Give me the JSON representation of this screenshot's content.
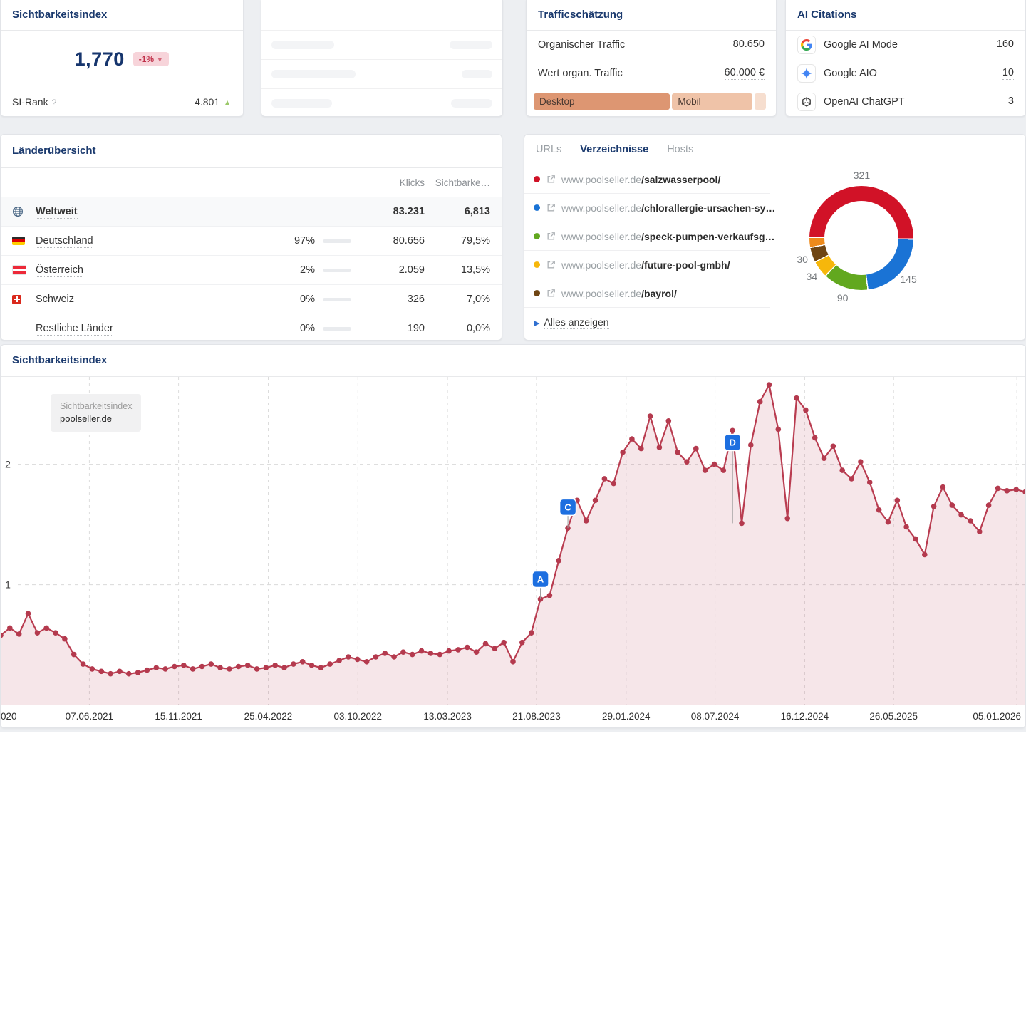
{
  "si_card": {
    "title": "Sichtbarkeitsindex",
    "value": "1,770",
    "change": "-1%",
    "change_dir": "▼",
    "rank_label": "SI-Rank",
    "rank_help": "?",
    "rank_value": "4.801",
    "rank_dir": "▲"
  },
  "skeleton_card": {
    "rows": [
      [
        88,
        60
      ],
      [
        118,
        43
      ],
      [
        85,
        58
      ]
    ]
  },
  "traffic_card": {
    "title": "Trafficschätzung",
    "rows": [
      {
        "label": "Organischer Traffic",
        "value": "80.650"
      },
      {
        "label": "Wert organ. Traffic",
        "value": "60.000 €"
      }
    ],
    "bar_segments": [
      {
        "label": "Desktop",
        "pct": 58,
        "color": "#dd9672"
      },
      {
        "label": "Mobil",
        "pct": 34,
        "color": "#efc3a8"
      },
      {
        "label": "",
        "pct": 5,
        "color": "#f6decf"
      }
    ]
  },
  "ai_card": {
    "title": "AI Citations",
    "rows": [
      {
        "icon": "google-g-icon",
        "label": "Google AI Mode",
        "value": "160"
      },
      {
        "icon": "google-aio-icon",
        "label": "Google AIO",
        "value": "10"
      },
      {
        "icon": "openai-icon",
        "label": "OpenAI ChatGPT",
        "value": "3"
      }
    ]
  },
  "countries_card": {
    "title": "Länderübersicht",
    "col_klicks": "Klicks",
    "col_si": "Sichtbarke…",
    "rows": [
      {
        "flag": "globe",
        "name": "Weltweit",
        "pct": "",
        "bar_pct": null,
        "klicks": "83.231",
        "si": "6,813",
        "bold": true
      },
      {
        "flag": "de",
        "name": "Deutschland",
        "pct": "97%",
        "bar_pct": 97,
        "klicks": "80.656",
        "si": "79,5%"
      },
      {
        "flag": "at",
        "name": "Österreich",
        "pct": "2%",
        "bar_pct": 2,
        "klicks": "2.059",
        "si": "13,5%"
      },
      {
        "flag": "ch",
        "name": "Schweiz",
        "pct": "0%",
        "bar_pct": 0,
        "klicks": "326",
        "si": "7,0%"
      },
      {
        "flag": "none",
        "name": "Restliche Länder",
        "pct": "0%",
        "bar_pct": 0,
        "klicks": "190",
        "si": "0,0%"
      }
    ]
  },
  "dirs_card": {
    "tabs": [
      "URLs",
      "Verzeichnisse",
      "Hosts"
    ],
    "active_tab": "Verzeichnisse",
    "links": [
      {
        "dot": "#cf1126",
        "host": "www.poolseller.de",
        "path": "/salzwasserpool/"
      },
      {
        "dot": "#1a73d5",
        "host": "www.poolseller.de",
        "path": "/chlorallergie-ursachen-sy…"
      },
      {
        "dot": "#62a81f",
        "host": "www.poolseller.de",
        "path": "/speck-pumpen-verkaufsg…"
      },
      {
        "dot": "#f6b70b",
        "host": "www.poolseller.de",
        "path": "/future-pool-gmbh/"
      },
      {
        "dot": "#6f4513",
        "host": "www.poolseller.de",
        "path": "/bayrol/"
      }
    ],
    "show_all": "Alles anzeigen"
  },
  "chart_card": {
    "title": "Sichtbarkeitsindex",
    "legend_label": "Sichtbarkeitsindex",
    "legend_domain": "poolseller.de"
  },
  "chart_data": [
    {
      "type": "pie",
      "title": "Verzeichnisse distribution",
      "start_angle": 270,
      "slices": [
        {
          "value": 321,
          "color": "#d11227",
          "show_label": true
        },
        {
          "value": 145,
          "color": "#1a73d5",
          "show_label": true
        },
        {
          "value": 90,
          "color": "#62a81f",
          "show_label": true
        },
        {
          "value": 34,
          "color": "#f6b70b",
          "show_label": true
        },
        {
          "value": 30,
          "color": "#6f4513",
          "show_label": true
        },
        {
          "value": 20,
          "color": "#ee8a1b",
          "show_label": false
        }
      ]
    },
    {
      "type": "area-line",
      "title": "Sichtbarkeitsindex",
      "entity": "poolseller.de",
      "ylim": [
        0,
        2.72
      ],
      "y_ticks": [
        1,
        2
      ],
      "x_ticks": [
        {
          "label": "020",
          "f": 0.004,
          "grid": false,
          "align": "left"
        },
        {
          "label": "07.06.2021",
          "f": 0.0865,
          "grid": true,
          "align": "center"
        },
        {
          "label": "15.11.2021",
          "f": 0.1736,
          "grid": true,
          "align": "center"
        },
        {
          "label": "25.04.2022",
          "f": 0.2611,
          "grid": true,
          "align": "center"
        },
        {
          "label": "03.10.2022",
          "f": 0.3486,
          "grid": true,
          "align": "center"
        },
        {
          "label": "13.03.2023",
          "f": 0.4361,
          "grid": true,
          "align": "center"
        },
        {
          "label": "21.08.2023",
          "f": 0.5229,
          "grid": true,
          "align": "center"
        },
        {
          "label": "29.01.2024",
          "f": 0.6104,
          "grid": true,
          "align": "center"
        },
        {
          "label": "08.07.2024",
          "f": 0.6972,
          "grid": true,
          "align": "center"
        },
        {
          "label": "16.12.2024",
          "f": 0.7847,
          "grid": true,
          "align": "center"
        },
        {
          "label": "26.05.2025",
          "f": 0.8715,
          "grid": true,
          "align": "center"
        },
        {
          "label": "05.01.2026",
          "f": 0.9917,
          "grid": true,
          "align": "right"
        }
      ],
      "values": [
        0.58,
        0.64,
        0.59,
        0.76,
        0.6,
        0.64,
        0.6,
        0.55,
        0.42,
        0.34,
        0.3,
        0.28,
        0.26,
        0.28,
        0.26,
        0.27,
        0.29,
        0.31,
        0.3,
        0.32,
        0.33,
        0.3,
        0.32,
        0.34,
        0.31,
        0.3,
        0.32,
        0.33,
        0.3,
        0.31,
        0.33,
        0.31,
        0.34,
        0.36,
        0.33,
        0.31,
        0.34,
        0.37,
        0.4,
        0.38,
        0.36,
        0.4,
        0.43,
        0.4,
        0.44,
        0.42,
        0.45,
        0.43,
        0.42,
        0.45,
        0.46,
        0.48,
        0.44,
        0.51,
        0.47,
        0.52,
        0.36,
        0.52,
        0.6,
        0.88,
        0.91,
        1.2,
        1.47,
        1.7,
        1.53,
        1.7,
        1.88,
        1.84,
        2.1,
        2.21,
        2.13,
        2.4,
        2.14,
        2.36,
        2.1,
        2.02,
        2.13,
        1.95,
        2.0,
        1.95,
        2.28,
        1.51,
        2.16,
        2.52,
        2.66,
        2.29,
        1.55,
        2.55,
        2.45,
        2.22,
        2.05,
        2.15,
        1.95,
        1.88,
        2.02,
        1.85,
        1.62,
        1.52,
        1.7,
        1.48,
        1.38,
        1.25,
        1.65,
        1.81,
        1.66,
        1.58,
        1.53,
        1.44,
        1.66,
        1.8,
        1.78,
        1.79,
        1.77
      ],
      "markers": [
        {
          "label": "A",
          "f": 0.5268,
          "pin_v": 1.045,
          "stem_v": 0.88
        },
        {
          "label": "C",
          "f": 0.5536,
          "pin_v": 1.643,
          "stem_v": 1.47
        },
        {
          "label": "D",
          "f": 0.7143,
          "pin_v": 2.181,
          "stem_v": 1.51
        }
      ]
    }
  ],
  "colors": {
    "line": "#b93c50",
    "fill": "rgba(186,62,82,0.13)",
    "pin": "#1d6fe0",
    "accent_navy": "#1b3a6e"
  }
}
